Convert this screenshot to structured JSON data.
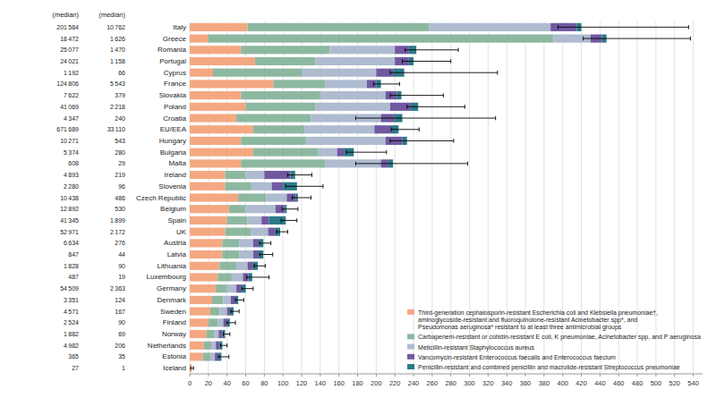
{
  "chart_data": {
    "type": "bar",
    "orientation": "horizontal",
    "stacked": true,
    "grid": true,
    "legend": "lower right",
    "categories": [
      "Italy",
      "Greece",
      "Romania",
      "Portugal",
      "Cyprus",
      "France",
      "Slovakia",
      "Poland",
      "Croatia",
      "EU/EEA",
      "Hungary",
      "Bulgaria",
      "Malta",
      "Ireland",
      "Slovenia",
      "Czech Republic",
      "Belgium",
      "Spain",
      "UK",
      "Austria",
      "Latvia",
      "Lithuania",
      "Luxembourg",
      "Germany",
      "Denmark",
      "Sweden",
      "Finland",
      "Norway",
      "Netherlands",
      "Estonia",
      "Iceland"
    ],
    "series": [
      {
        "name": "Third-generation cephalosporin-resistant Escherichia coli and Klebsiella pneumoniae†,\naminoglycoside-resistant and fluoroquinolone-resistant Acinetobacter spp*, and\nPseudomonas aeruginosa* resistant to at least three antimicrobial groups",
        "color": "#F4A882",
        "values": [
          62,
          20,
          55,
          70,
          25,
          90,
          55,
          60,
          50,
          68,
          55,
          68,
          55,
          38,
          38,
          52,
          42,
          40,
          38,
          35,
          35,
          32,
          30,
          28,
          24,
          22,
          20,
          18,
          15,
          14,
          2
        ]
      },
      {
        "name": "Carbapenem-resistant or colistin-resistant E coli, K pneumoniae, Acinetobacter spp, and P aeruginosa",
        "color": "#8DB8A0",
        "values": [
          195,
          370,
          95,
          65,
          95,
          55,
          85,
          75,
          80,
          55,
          70,
          70,
          90,
          22,
          28,
          30,
          18,
          22,
          28,
          18,
          18,
          18,
          15,
          12,
          12,
          10,
          10,
          8,
          8,
          8,
          0
        ]
      },
      {
        "name": "Meticillin-resistant Staphylococcus aureus",
        "color": "#AEBBD0",
        "values": [
          130,
          40,
          70,
          85,
          80,
          45,
          70,
          80,
          75,
          75,
          85,
          20,
          60,
          20,
          22,
          22,
          32,
          15,
          18,
          15,
          15,
          12,
          12,
          10,
          8,
          8,
          6,
          5,
          5,
          5,
          0
        ]
      },
      {
        "name": "Vancomycin-resistant Enterococcus faecalis and Enterococcus faecium",
        "color": "#7059A0",
        "values": [
          28,
          12,
          15,
          15,
          18,
          10,
          12,
          22,
          15,
          18,
          18,
          8,
          8,
          28,
          12,
          10,
          10,
          8,
          8,
          6,
          6,
          6,
          6,
          6,
          5,
          4,
          4,
          4,
          4,
          4,
          0
        ]
      },
      {
        "name": "Penicillin-resistant and combined penicillin and macrolide-resistant Streptococcus pneumoniae",
        "color": "#2B7A87",
        "values": [
          5,
          5,
          8,
          5,
          12,
          5,
          5,
          8,
          8,
          8,
          5,
          10,
          5,
          5,
          15,
          2,
          2,
          18,
          5,
          5,
          5,
          5,
          4,
          4,
          3,
          3,
          3,
          3,
          3,
          3,
          0
        ]
      }
    ],
    "error_low": [
      25,
      25,
      12,
      12,
      15,
      8,
      12,
      12,
      50,
      8,
      18,
      8,
      40,
      8,
      12,
      6,
      5,
      5,
      4,
      4,
      4,
      4,
      6,
      4,
      3,
      3,
      3,
      2,
      2,
      3,
      1
    ],
    "error_high": [
      115,
      90,
      45,
      40,
      100,
      20,
      45,
      50,
      100,
      22,
      50,
      35,
      80,
      18,
      28,
      14,
      12,
      12,
      8,
      8,
      10,
      8,
      18,
      8,
      6,
      6,
      6,
      5,
      5,
      8,
      2
    ],
    "xlim": [
      0,
      550
    ],
    "xticks": [
      0,
      20,
      40,
      60,
      80,
      100,
      120,
      140,
      160,
      180,
      200,
      220,
      240,
      260,
      280,
      300,
      320,
      340,
      360,
      380,
      400,
      420,
      440,
      460,
      480,
      500,
      520,
      540
    ],
    "table_columns": [
      {
        "header": "(median)",
        "values": [
          201584,
          18472,
          25077,
          24021,
          1192,
          124806,
          7622,
          41069,
          4347,
          671689,
          10271,
          5374,
          608,
          4893,
          2280,
          10438,
          12892,
          41345,
          52971,
          6634,
          847,
          1828,
          487,
          54509,
          3351,
          4571,
          2524,
          1882,
          4982,
          365,
          27
        ],
        "value_labels": [
          "201 584",
          "18 472",
          "25 077",
          "24 021",
          "1 192",
          "124 806",
          "7 622",
          "41 069",
          "4 347",
          "671 689",
          "10 271",
          "5 374",
          "608",
          "4 893",
          "2 280",
          "10 438",
          "12 892",
          "41 345",
          "52 971",
          "6 634",
          "847",
          "1 828",
          "487",
          "54 509",
          "3 351",
          "4 571",
          "2 524",
          "1 882",
          "4 982",
          "365",
          "27"
        ]
      },
      {
        "header": "(median)",
        "values": [
          10762,
          1626,
          1470,
          1158,
          66,
          5543,
          379,
          2218,
          240,
          33110,
          543,
          280,
          29,
          219,
          96,
          486,
          530,
          1899,
          2172,
          276,
          44,
          90,
          19,
          2363,
          124,
          167,
          90,
          69,
          206,
          35,
          1
        ],
        "value_labels": [
          "10 762",
          "1 626",
          "1 470",
          "1 158",
          "66",
          "5 543",
          "379",
          "2 218",
          "240",
          "33 110",
          "543",
          "280",
          "29",
          "219",
          "96",
          "486",
          "530",
          "1 899",
          "2 172",
          "276",
          "44",
          "90",
          "19",
          "2 363",
          "124",
          "167",
          "90",
          "69",
          "206",
          "35",
          "1"
        ]
      }
    ]
  }
}
